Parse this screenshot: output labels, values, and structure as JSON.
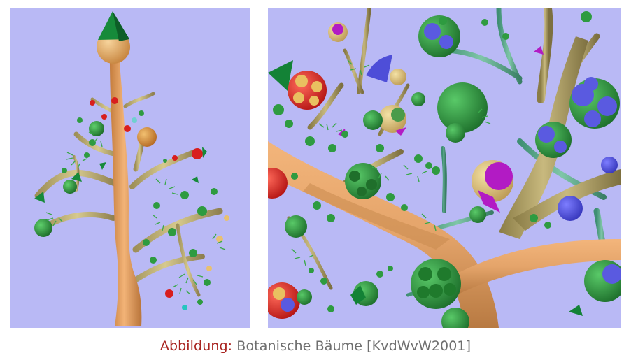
{
  "figure": {
    "caption_label": "Abbildung:",
    "caption_text": " Botanische Bäume [KvdWvW2001]"
  },
  "images": [
    {
      "name": "botanical-tree-overview"
    },
    {
      "name": "botanical-tree-closeup"
    }
  ],
  "colors": {
    "background_panel": "#b9b9f5",
    "caption_label": "#a8231f",
    "caption_text": "#6e6e6e",
    "trunk": "#e4a46a",
    "branch": "#c9b678",
    "leaf_green": "#2e9b40",
    "fruit_red": "#d81e1e",
    "fruit_blue": "#5a5ae0",
    "fruit_purple": "#b21bc4"
  }
}
